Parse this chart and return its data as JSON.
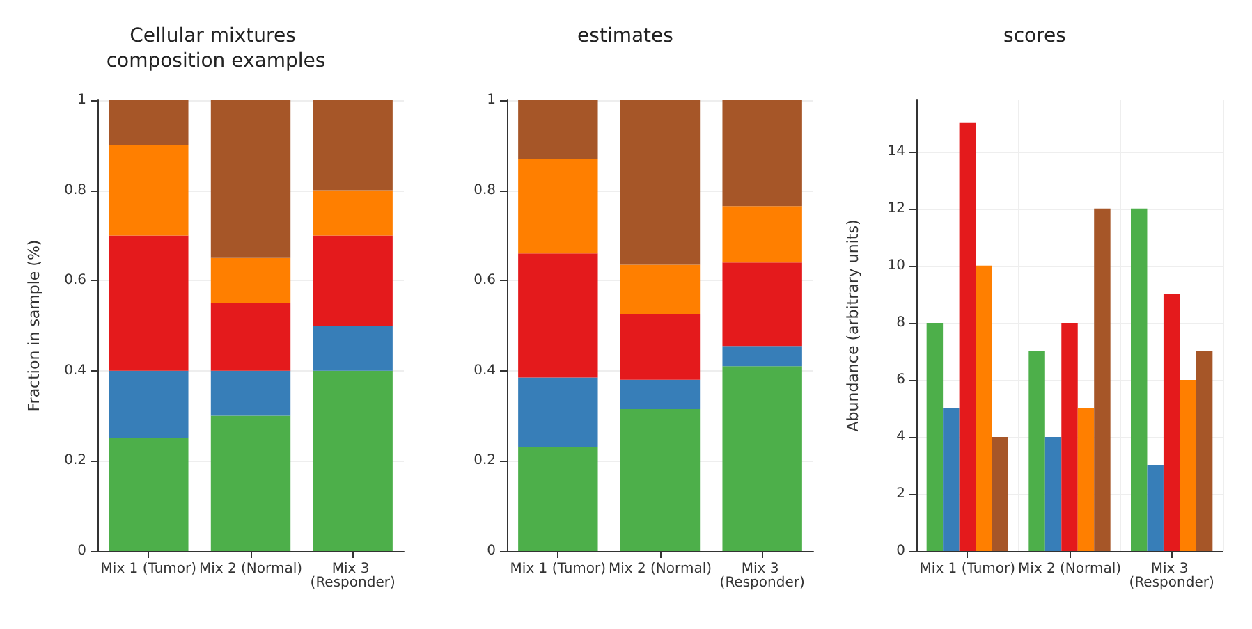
{
  "chart_data": [
    {
      "type": "bar",
      "title": "Cellular mixtures composition examples",
      "ylabel": "Fraction in sample (%)",
      "categories": [
        "Mix 1 (Tumor)",
        "Mix 2 (Normal)",
        "Mix 3 (Responder)"
      ],
      "stacked": true,
      "ylim": [
        0,
        1
      ],
      "yticks": [
        0,
        0.2,
        0.4,
        0.6,
        0.8,
        1
      ],
      "grid": "y",
      "series": [
        {
          "color": "#4daf4a",
          "values": [
            0.25,
            0.3,
            0.4
          ]
        },
        {
          "color": "#377eb8",
          "values": [
            0.15,
            0.1,
            0.1
          ]
        },
        {
          "color": "#e41a1c",
          "values": [
            0.3,
            0.15,
            0.2
          ]
        },
        {
          "color": "#ff7f00",
          "values": [
            0.2,
            0.1,
            0.1
          ]
        },
        {
          "color": "#a65628",
          "values": [
            0.1,
            0.35,
            0.2
          ]
        }
      ]
    },
    {
      "type": "bar",
      "title": "estimates",
      "categories": [
        "Mix 1 (Tumor)",
        "Mix 2 (Normal)",
        "Mix 3 (Responder)"
      ],
      "stacked": true,
      "ylim": [
        0,
        1
      ],
      "yticks": [
        0,
        0.2,
        0.4,
        0.6,
        0.8,
        1
      ],
      "grid": "y",
      "series": [
        {
          "color": "#4daf4a",
          "values": [
            0.23,
            0.315,
            0.41
          ]
        },
        {
          "color": "#377eb8",
          "values": [
            0.155,
            0.065,
            0.045
          ]
        },
        {
          "color": "#e41a1c",
          "values": [
            0.275,
            0.145,
            0.185
          ]
        },
        {
          "color": "#ff7f00",
          "values": [
            0.21,
            0.11,
            0.125
          ]
        },
        {
          "color": "#a65628",
          "values": [
            0.13,
            0.365,
            0.235
          ]
        }
      ]
    },
    {
      "type": "bar",
      "title": "scores",
      "ylabel": "Abundance (arbitrary units)",
      "categories": [
        "Mix 1 (Tumor)",
        "Mix 2 (Normal)",
        "Mix 3 (Responder)"
      ],
      "ylim": [
        0,
        15.8
      ],
      "yticks": [
        0,
        2,
        4,
        6,
        8,
        10,
        12,
        14
      ],
      "grid": true,
      "series": [
        {
          "color": "#4daf4a",
          "values": [
            8,
            7,
            12
          ]
        },
        {
          "color": "#377eb8",
          "values": [
            5,
            4,
            3
          ]
        },
        {
          "color": "#e41a1c",
          "values": [
            15,
            8,
            9
          ]
        },
        {
          "color": "#ff7f00",
          "values": [
            10,
            5,
            6
          ]
        },
        {
          "color": "#a65628",
          "values": [
            4,
            12,
            7
          ]
        }
      ]
    }
  ]
}
